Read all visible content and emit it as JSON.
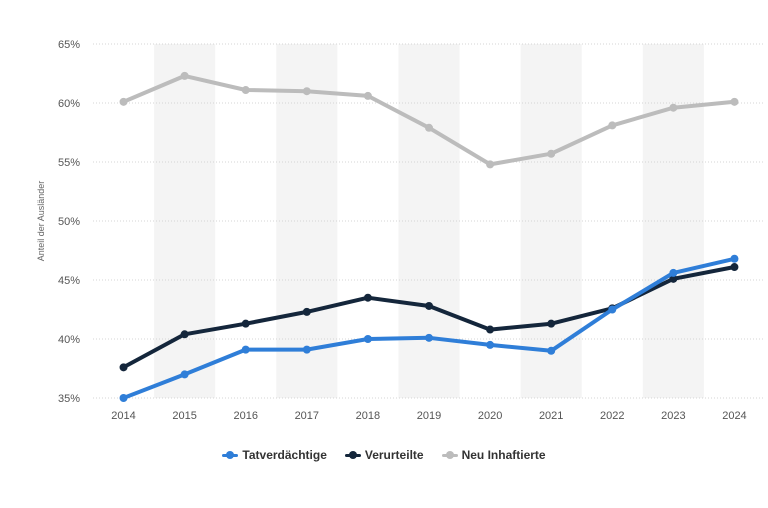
{
  "chart_data": {
    "type": "line",
    "ylabel": "Anteil der Ausländer",
    "ylim": [
      35,
      65
    ],
    "y_ticks": [
      "35%",
      "40%",
      "45%",
      "50%",
      "55%",
      "60%",
      "65%"
    ],
    "categories": [
      "2014",
      "2015",
      "2016",
      "2017",
      "2018",
      "2019",
      "2020",
      "2021",
      "2022",
      "2023",
      "2024"
    ],
    "grid": true,
    "legend_position": "bottom",
    "series": [
      {
        "name": "Tatverdächtige",
        "color": "#2f7ed8",
        "values": [
          35.0,
          37.0,
          39.1,
          39.1,
          40.0,
          40.1,
          39.5,
          39.0,
          42.5,
          45.6,
          46.8
        ]
      },
      {
        "name": "Verurteilte",
        "color": "#14263b",
        "values": [
          37.6,
          40.4,
          41.3,
          42.3,
          43.5,
          42.8,
          40.8,
          41.3,
          42.6,
          45.1,
          46.1
        ]
      },
      {
        "name": "Neu Inhaftierte",
        "color": "#bcbcbc",
        "values": [
          60.1,
          62.3,
          61.1,
          61.0,
          60.6,
          57.9,
          54.8,
          55.7,
          58.1,
          59.6,
          60.1
        ]
      }
    ]
  }
}
